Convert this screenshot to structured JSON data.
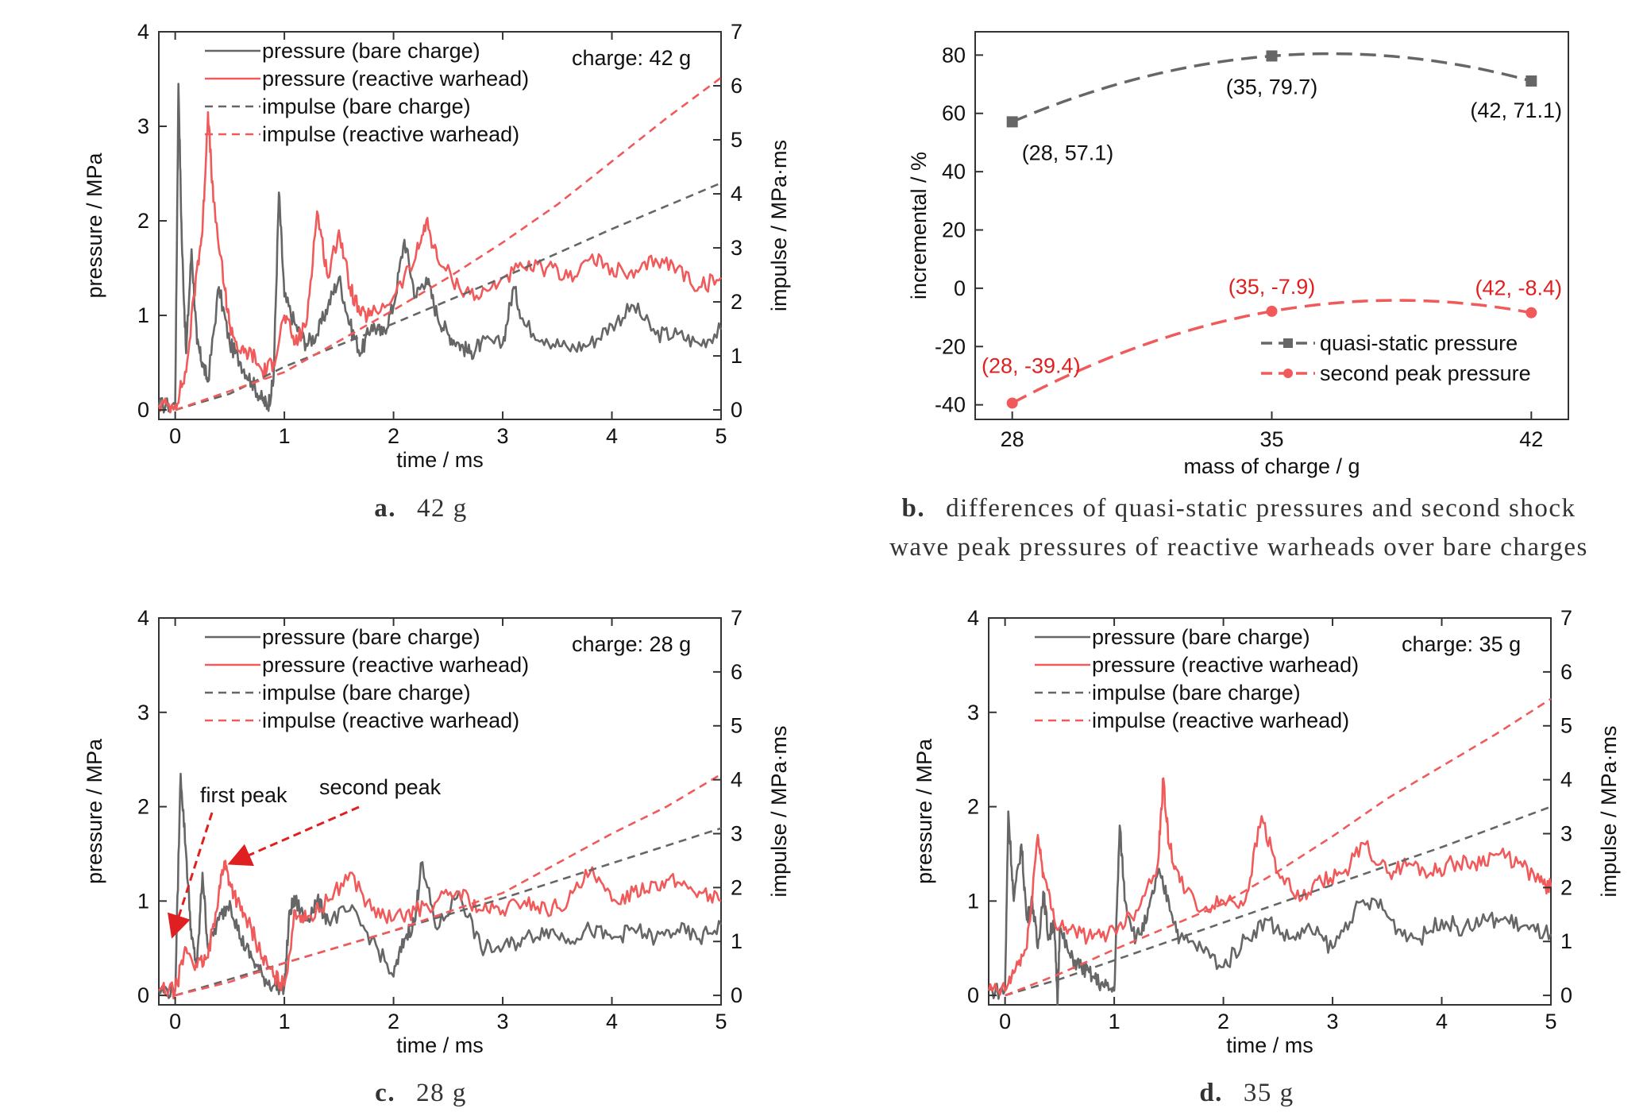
{
  "colors": {
    "bare": "#666666",
    "reactive": "#f05a5a",
    "text": "#111111",
    "ann_red": "#e02020"
  },
  "captions": {
    "a": {
      "letter": "a.",
      "text": "42 g"
    },
    "b": {
      "letter": "b.",
      "line1": "differences of quasi-static pressures and second shock",
      "line2": "wave peak pressures of reactive warheads over bare charges"
    },
    "c": {
      "letter": "c.",
      "text": "28 g"
    },
    "d": {
      "letter": "d.",
      "text": "35 g"
    }
  },
  "chart_data": [
    {
      "id": "a",
      "type": "line",
      "xlabel": "time / ms",
      "ylabel": "pressure / MPa",
      "y2label": "impulse / MPa·ms",
      "xlim": [
        -0.15,
        5
      ],
      "ylim": [
        -0.1,
        4
      ],
      "y2lim": [
        -0.175,
        7
      ],
      "xticks": [
        0,
        1,
        2,
        3,
        4,
        5
      ],
      "yticks": [
        0,
        1,
        2,
        3,
        4
      ],
      "y2ticks": [
        0,
        1,
        2,
        3,
        4,
        5,
        6,
        7
      ],
      "annotation": "charge: 42 g",
      "legend": [
        "pressure (bare charge)",
        "pressure (reactive warhead)",
        "impulse (bare charge)",
        "impulse (reactive warhead)"
      ],
      "series": [
        {
          "role": "pressure_bare",
          "x": [
            -0.15,
            0,
            0.03,
            0.06,
            0.1,
            0.15,
            0.2,
            0.25,
            0.3,
            0.4,
            0.5,
            0.6,
            0.7,
            0.8,
            0.85,
            0.9,
            0.95,
            1.0,
            1.1,
            1.2,
            1.3,
            1.4,
            1.5,
            1.6,
            1.7,
            1.8,
            1.9,
            2.0,
            2.1,
            2.2,
            2.3,
            2.4,
            2.5,
            2.6,
            2.7,
            2.8,
            3.0,
            3.1,
            3.2,
            3.4,
            3.6,
            3.8,
            4.0,
            4.2,
            4.4,
            4.6,
            4.8,
            5.0
          ],
          "y": [
            0.05,
            0.05,
            3.45,
            1.8,
            0.6,
            1.7,
            0.7,
            0.5,
            0.3,
            1.3,
            0.7,
            0.5,
            0.3,
            0.1,
            0.05,
            0.3,
            2.3,
            1.2,
            0.9,
            0.7,
            0.8,
            1.1,
            1.4,
            0.9,
            0.6,
            0.9,
            0.8,
            1.1,
            1.8,
            1.2,
            1.4,
            1.0,
            0.8,
            0.7,
            0.6,
            0.7,
            0.7,
            1.3,
            0.9,
            0.75,
            0.65,
            0.7,
            0.9,
            1.1,
            0.8,
            0.8,
            0.7,
            0.85
          ]
        },
        {
          "role": "pressure_reactive",
          "x": [
            -0.15,
            0,
            0.1,
            0.2,
            0.25,
            0.3,
            0.35,
            0.45,
            0.5,
            0.6,
            0.7,
            0.8,
            0.9,
            1.0,
            1.1,
            1.2,
            1.3,
            1.4,
            1.5,
            1.6,
            1.7,
            1.8,
            2.0,
            2.2,
            2.3,
            2.4,
            2.6,
            2.8,
            3.0,
            3.2,
            3.4,
            3.6,
            3.8,
            4.0,
            4.2,
            4.4,
            4.6,
            4.8,
            5.0
          ],
          "y": [
            0.05,
            0.05,
            0.4,
            1.5,
            1.9,
            3.15,
            2.2,
            1.3,
            0.9,
            0.6,
            0.6,
            0.4,
            0.5,
            1.0,
            0.7,
            0.9,
            2.1,
            1.4,
            1.9,
            1.3,
            1.0,
            1.0,
            1.2,
            1.6,
            2.0,
            1.6,
            1.3,
            1.2,
            1.4,
            1.5,
            1.5,
            1.4,
            1.6,
            1.5,
            1.4,
            1.6,
            1.5,
            1.3,
            1.4
          ]
        },
        {
          "role": "impulse_bare",
          "x": [
            0,
            0.5,
            1.0,
            2.0,
            3.0,
            4.0,
            5.0
          ],
          "y": [
            0,
            0.3,
            0.8,
            1.6,
            2.45,
            3.35,
            4.2
          ]
        },
        {
          "role": "impulse_reactive",
          "x": [
            0,
            0.5,
            1.0,
            2.0,
            2.5,
            3.0,
            3.5,
            4.0,
            4.5,
            5.0
          ],
          "y": [
            0,
            0.35,
            0.7,
            1.85,
            2.45,
            3.1,
            3.8,
            4.6,
            5.4,
            6.15
          ]
        }
      ]
    },
    {
      "id": "b",
      "type": "line",
      "xlabel": "mass of charge / g",
      "ylabel": "incremental / %",
      "xlim": [
        27,
        43
      ],
      "ylim": [
        -45,
        88
      ],
      "xticks": [
        28,
        35,
        42
      ],
      "yticks": [
        -40,
        -20,
        0,
        20,
        40,
        60,
        80
      ],
      "series": [
        {
          "name": "quasi-static pressure",
          "role": "qs",
          "x": [
            28,
            35,
            42
          ],
          "y": [
            57.1,
            79.7,
            71.1
          ],
          "labels": [
            "(28, 57.1)",
            "(35, 79.7)",
            "(42, 71.1)"
          ]
        },
        {
          "name": "second peak pressure",
          "role": "sp",
          "x": [
            28,
            35,
            42
          ],
          "y": [
            -39.4,
            -7.9,
            -8.4
          ],
          "labels": [
            "(28, -39.4)",
            "(35, -7.9)",
            "(42, -8.4)"
          ]
        }
      ]
    },
    {
      "id": "c",
      "type": "line",
      "xlabel": "time / ms",
      "ylabel": "pressure / MPa",
      "y2label": "impulse / MPa·ms",
      "xlim": [
        -0.15,
        5
      ],
      "ylim": [
        -0.1,
        4
      ],
      "y2lim": [
        -0.175,
        7
      ],
      "xticks": [
        0,
        1,
        2,
        3,
        4,
        5
      ],
      "yticks": [
        0,
        1,
        2,
        3,
        4
      ],
      "y2ticks": [
        0,
        1,
        2,
        3,
        4,
        5,
        6,
        7
      ],
      "annotation": "charge: 28 g",
      "arrows": [
        "first peak",
        "second peak"
      ],
      "legend": [
        "pressure (bare charge)",
        "pressure (reactive warhead)",
        "impulse (bare charge)",
        "impulse (reactive warhead)"
      ],
      "series": [
        {
          "role": "pressure_bare",
          "x": [
            -0.15,
            0,
            0.05,
            0.1,
            0.15,
            0.2,
            0.25,
            0.3,
            0.4,
            0.5,
            0.6,
            0.7,
            0.8,
            0.9,
            1.0,
            1.05,
            1.1,
            1.2,
            1.3,
            1.4,
            1.6,
            1.8,
            2.0,
            2.1,
            2.2,
            2.25,
            2.4,
            2.6,
            2.8,
            3.0,
            3.2,
            3.4,
            3.6,
            3.8,
            4.0,
            4.2,
            4.4,
            4.6,
            4.8,
            5.0
          ],
          "y": [
            0.05,
            0.05,
            2.35,
            1.5,
            0.6,
            0.3,
            1.3,
            0.5,
            0.8,
            1.0,
            0.6,
            0.4,
            0.2,
            0.1,
            0.1,
            0.9,
            1.0,
            0.8,
            1.0,
            0.8,
            0.9,
            0.6,
            0.2,
            0.6,
            0.8,
            1.4,
            0.7,
            1.1,
            0.5,
            0.5,
            0.6,
            0.7,
            0.6,
            0.7,
            0.6,
            0.7,
            0.6,
            0.7,
            0.6,
            0.75
          ]
        },
        {
          "role": "pressure_reactive",
          "x": [
            -0.15,
            0,
            0.1,
            0.2,
            0.3,
            0.4,
            0.45,
            0.5,
            0.6,
            0.7,
            0.8,
            0.9,
            1.0,
            1.1,
            1.2,
            1.4,
            1.6,
            1.8,
            2.0,
            2.2,
            2.4,
            2.6,
            2.8,
            3.0,
            3.2,
            3.4,
            3.6,
            3.8,
            4.0,
            4.2,
            4.4,
            4.6,
            4.8,
            5.0
          ],
          "y": [
            0.05,
            0.05,
            0.5,
            0.3,
            0.4,
            1.1,
            1.42,
            1.2,
            0.9,
            0.7,
            0.4,
            0.2,
            0.1,
            0.9,
            0.8,
            1.0,
            1.3,
            0.9,
            0.8,
            0.9,
            1.0,
            1.1,
            0.9,
            0.9,
            1.0,
            0.9,
            1.0,
            1.3,
            1.0,
            1.1,
            1.2,
            1.2,
            1.1,
            1.0
          ]
        },
        {
          "role": "impulse_bare",
          "x": [
            0,
            0.5,
            1.0,
            2.0,
            3.0,
            4.0,
            5.0
          ],
          "y": [
            0,
            0.3,
            0.6,
            1.2,
            1.8,
            2.45,
            3.1
          ]
        },
        {
          "role": "impulse_reactive",
          "x": [
            0,
            0.5,
            1.0,
            2.0,
            3.0,
            3.5,
            4.0,
            4.5,
            5.0
          ],
          "y": [
            0,
            0.25,
            0.6,
            1.2,
            1.9,
            2.45,
            3.0,
            3.5,
            4.1
          ]
        }
      ]
    },
    {
      "id": "d",
      "type": "line",
      "xlabel": "time / ms",
      "ylabel": "pressure / MPa",
      "y2label": "impulse / MPa·ms",
      "xlim": [
        -0.15,
        5
      ],
      "ylim": [
        -0.1,
        4
      ],
      "y2lim": [
        -0.175,
        7
      ],
      "xticks": [
        0,
        1,
        2,
        3,
        4,
        5
      ],
      "yticks": [
        0,
        1,
        2,
        3,
        4
      ],
      "y2ticks": [
        0,
        1,
        2,
        3,
        4,
        5,
        6,
        7
      ],
      "annotation": "charge: 35 g",
      "legend": [
        "pressure (bare charge)",
        "pressure (reactive warhead)",
        "impulse (bare charge)",
        "impulse (reactive warhead)"
      ],
      "series": [
        {
          "role": "pressure_bare",
          "x": [
            -0.15,
            0,
            0.03,
            0.08,
            0.15,
            0.2,
            0.25,
            0.3,
            0.35,
            0.4,
            0.45,
            0.48,
            0.5,
            0.6,
            0.7,
            0.8,
            0.9,
            1.0,
            1.05,
            1.1,
            1.2,
            1.3,
            1.4,
            1.5,
            1.6,
            1.8,
            2.0,
            2.2,
            2.4,
            2.6,
            2.8,
            3.0,
            3.2,
            3.4,
            3.6,
            3.8,
            4.0,
            4.2,
            4.4,
            4.6,
            4.8,
            5.0
          ],
          "y": [
            0.05,
            0.05,
            1.95,
            1.0,
            1.6,
            0.8,
            1.0,
            0.5,
            1.1,
            0.6,
            0.8,
            -0.1,
            0.7,
            0.4,
            0.3,
            0.2,
            0.1,
            0.05,
            1.8,
            1.0,
            0.6,
            0.8,
            1.3,
            1.0,
            0.6,
            0.5,
            0.3,
            0.6,
            0.8,
            0.6,
            0.7,
            0.5,
            0.9,
            1.0,
            0.7,
            0.6,
            0.8,
            0.7,
            0.8,
            0.8,
            0.7,
            0.65
          ]
        },
        {
          "role": "pressure_reactive",
          "x": [
            -0.15,
            0,
            0.1,
            0.2,
            0.3,
            0.35,
            0.45,
            0.6,
            0.8,
            1.0,
            1.2,
            1.4,
            1.45,
            1.5,
            1.6,
            1.8,
            2.0,
            2.2,
            2.35,
            2.5,
            2.7,
            2.9,
            3.1,
            3.3,
            3.5,
            3.7,
            3.9,
            4.1,
            4.3,
            4.5,
            4.7,
            4.9,
            5.0
          ],
          "y": [
            0.05,
            0.05,
            0.3,
            0.5,
            1.7,
            1.3,
            0.8,
            0.7,
            0.6,
            0.7,
            0.9,
            1.4,
            2.3,
            1.6,
            1.2,
            0.9,
            1.0,
            1.0,
            1.9,
            1.3,
            1.0,
            1.2,
            1.3,
            1.6,
            1.3,
            1.4,
            1.3,
            1.4,
            1.4,
            1.5,
            1.4,
            1.2,
            1.15
          ]
        },
        {
          "role": "impulse_bare",
          "x": [
            0,
            0.5,
            1.0,
            2.0,
            3.0,
            4.0,
            5.0
          ],
          "y": [
            0,
            0.3,
            0.65,
            1.35,
            2.05,
            2.75,
            3.5
          ]
        },
        {
          "role": "impulse_reactive",
          "x": [
            0,
            0.5,
            1.0,
            2.0,
            2.5,
            3.0,
            3.5,
            4.0,
            4.5,
            5.0
          ],
          "y": [
            0,
            0.4,
            0.85,
            1.7,
            2.3,
            2.95,
            3.65,
            4.25,
            4.85,
            5.5
          ]
        }
      ]
    }
  ]
}
